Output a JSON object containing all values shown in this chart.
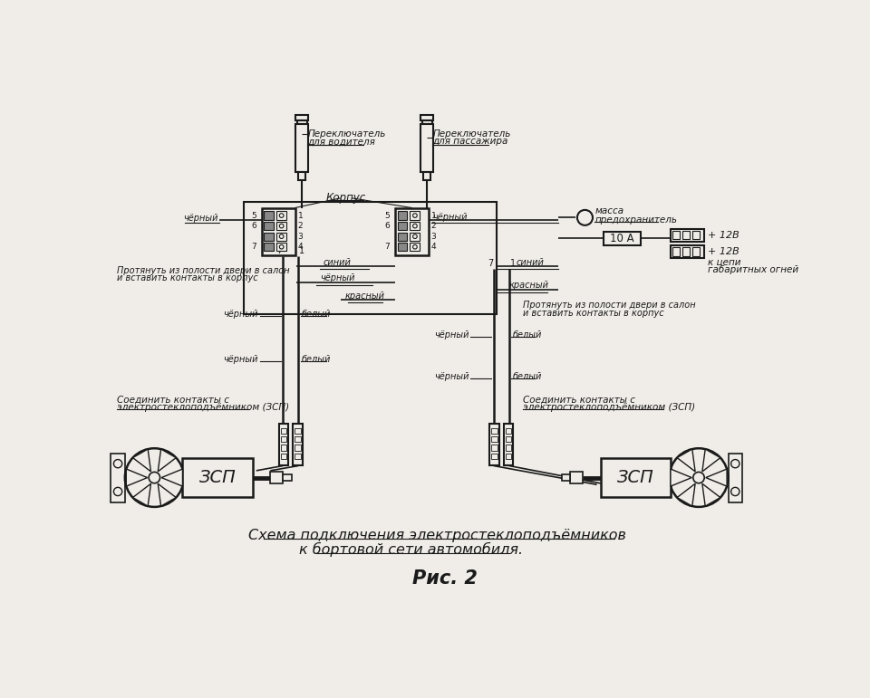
{
  "bg_color": "#f0ede8",
  "line_color": "#1a1a1a",
  "title1": "Схема подключения электростеклоподъёмников",
  "title2": "к бортовой сети автомобиля.",
  "fig_caption": "Рис. 2",
  "switch_left_label1": "Переключатель",
  "switch_left_label2": "для водителя",
  "switch_right_label1": "Переключатель",
  "switch_right_label2": "для пассажира",
  "korpus_label": "Корпус",
  "massa_label": "масса",
  "pred_label": "предохранитель",
  "fuse_label": "10 А",
  "plus12v_1": "+ 12В",
  "plus12v_2": "+ 12В",
  "chain_label1": "к цепи",
  "chain_label2": "габаритных огней",
  "pull_left1": "Протянуть из полости двери в салон",
  "pull_left2": "и вставить контакты в корпус",
  "pull_right1": "Протянуть из полости двери в салон",
  "pull_right2": "и вставить контакты в корпус",
  "connect_left1": "Соединить контакты с",
  "connect_left2": "электростеклоподъёмником (ЗСП)",
  "connect_right1": "Соединить контакты с",
  "connect_right2": "электростеклоподъёмником (ЗСП)",
  "zsp_label": "ЗСП",
  "black_label": "чёрный",
  "white_label": "белый",
  "blue_label": "синий",
  "red_label": "красный",
  "num7": "7",
  "num1": "1"
}
